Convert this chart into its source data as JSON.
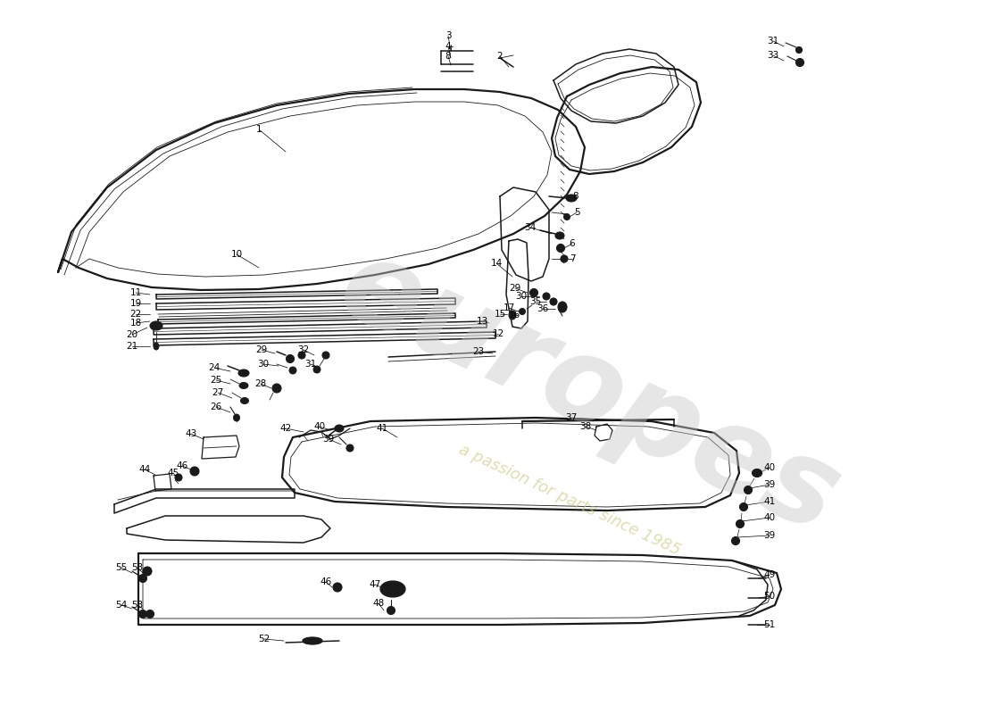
{
  "bg_color": "#ffffff",
  "line_color": "#1a1a1a",
  "watermark_text1": "europes",
  "watermark_text2": "a passion for parts since 1985",
  "lw_main": 1.1,
  "lw_thin": 0.6,
  "lw_thick": 1.6
}
